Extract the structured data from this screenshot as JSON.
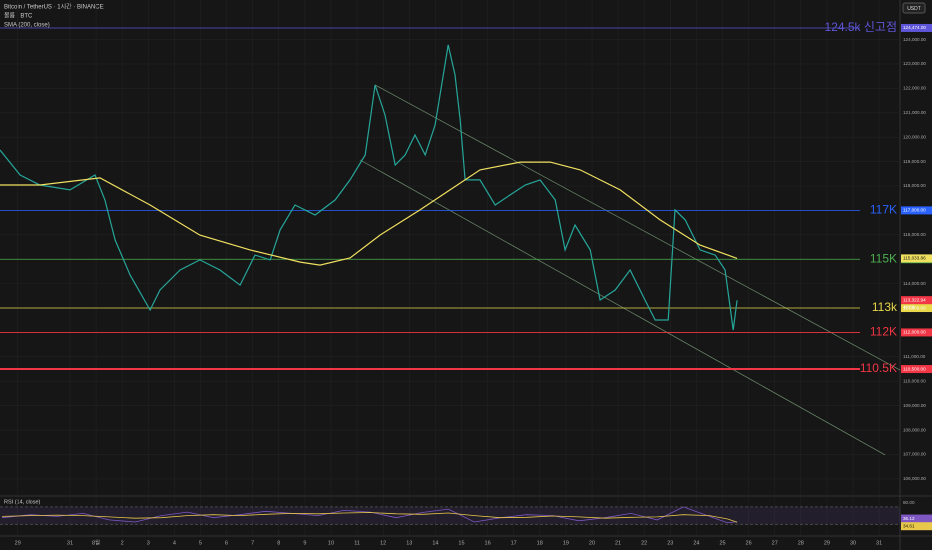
{
  "chart_data": [
    {
      "type": "line",
      "legend": [
        "Bitcoin / TetherUS · 1시간 · BINANCE",
        "볼륨 · BTC",
        "SMA (200, close)"
      ],
      "currency": "USDT",
      "countdown": "40:56",
      "xlim": [
        -3.68,
        30.8
      ],
      "xticks": [
        {
          "value": -3,
          "label": "29"
        },
        {
          "value": -1,
          "label": "31"
        },
        {
          "value": 0,
          "label": "8월"
        },
        {
          "value": 1,
          "label": "2"
        },
        {
          "value": 2,
          "label": "3"
        },
        {
          "value": 3,
          "label": "4"
        },
        {
          "value": 4,
          "label": "5"
        },
        {
          "value": 5,
          "label": "6"
        },
        {
          "value": 6,
          "label": "7"
        },
        {
          "value": 7,
          "label": "8"
        },
        {
          "value": 8,
          "label": "9"
        },
        {
          "value": 9,
          "label": "10"
        },
        {
          "value": 10,
          "label": "11"
        },
        {
          "value": 11,
          "label": "12"
        },
        {
          "value": 12,
          "label": "13"
        },
        {
          "value": 13,
          "label": "14"
        },
        {
          "value": 14,
          "label": "15"
        },
        {
          "value": 15,
          "label": "16"
        },
        {
          "value": 16,
          "label": "17"
        },
        {
          "value": 17,
          "label": "18"
        },
        {
          "value": 18,
          "label": "19"
        },
        {
          "value": 19,
          "label": "20"
        },
        {
          "value": 20,
          "label": "21"
        },
        {
          "value": 21,
          "label": "22"
        },
        {
          "value": 22,
          "label": "23"
        },
        {
          "value": 23,
          "label": "24"
        },
        {
          "value": 24,
          "label": "25"
        },
        {
          "value": 25,
          "label": "26"
        },
        {
          "value": 26,
          "label": "27"
        },
        {
          "value": 27,
          "label": "28"
        },
        {
          "value": 28,
          "label": "29"
        },
        {
          "value": 29,
          "label": "30"
        },
        {
          "value": 30,
          "label": "31"
        }
      ],
      "ylim": [
        105340,
        125620
      ],
      "yticks": [
        {
          "value": 106000,
          "label": "106,000.00"
        },
        {
          "value": 107000,
          "label": "107,000.00"
        },
        {
          "value": 108000,
          "label": "108,000.00"
        },
        {
          "value": 109000,
          "label": "109,000.00"
        },
        {
          "value": 110000,
          "label": "110,000.00"
        },
        {
          "value": 111000,
          "label": "111,000.00"
        },
        {
          "value": 114000,
          "label": "114,000.00"
        },
        {
          "value": 116000,
          "label": "116,000.00"
        },
        {
          "value": 118000,
          "label": "118,000.00"
        },
        {
          "value": 119000,
          "label": "119,000.00"
        },
        {
          "value": 120000,
          "label": "120,000.00"
        },
        {
          "value": 121000,
          "label": "121,000.00"
        },
        {
          "value": 122000,
          "label": "122,000.00"
        },
        {
          "value": 123000,
          "label": "123,000.00"
        },
        {
          "value": 124000,
          "label": "124,000.00"
        }
      ],
      "grid": true,
      "series": [
        {
          "name": "Bitcoin / TetherUS · 1시간 · BINANCE",
          "color": "#26a69a",
          "last_label": "113,322.94",
          "last_color": "#f23645",
          "x": [
            -3.68,
            -2.91,
            -2.15,
            -1.0,
            -0.04,
            0.34,
            0.73,
            1.3,
            2.07,
            2.45,
            3.22,
            3.98,
            4.75,
            5.52,
            6.09,
            6.67,
            7.05,
            7.62,
            8.39,
            9.16,
            9.73,
            10.31,
            10.69,
            11.07,
            11.46,
            11.84,
            12.22,
            12.61,
            12.99,
            13.49,
            13.75,
            13.95,
            14.14,
            14.71,
            15.29,
            15.86,
            16.44,
            17.01,
            17.59,
            17.97,
            18.35,
            18.93,
            19.31,
            19.89,
            20.46,
            21.03,
            21.42,
            21.92,
            22.18,
            22.57,
            23.14,
            23.72,
            24.1,
            24.41,
            24.56
          ],
          "values": [
            119475,
            118450,
            118040,
            117840,
            118450,
            117430,
            115790,
            114360,
            112920,
            113740,
            114560,
            114970,
            114560,
            113940,
            115170,
            114970,
            116200,
            117220,
            116810,
            117430,
            118250,
            119270,
            122140,
            120910,
            118860,
            119270,
            120090,
            119270,
            120500,
            123780,
            122550,
            120700,
            118250,
            118250,
            117220,
            117630,
            118040,
            118250,
            117430,
            115380,
            116400,
            115380,
            113330,
            113740,
            114560,
            113330,
            112510,
            112510,
            117020,
            116610,
            115380,
            115170,
            114560,
            112100,
            113322.94
          ]
        },
        {
          "name": "SMA (200, close)",
          "color": "#f0e060",
          "last_label": "115,033.86",
          "last_color": "#f0e060",
          "x": [
            -3.68,
            -2.15,
            0.15,
            2.07,
            3.98,
            5.9,
            7.82,
            8.58,
            9.73,
            10.88,
            12.41,
            13.56,
            14.71,
            16.25,
            17.4,
            18.55,
            20.08,
            21.61,
            23.14,
            24.56
          ],
          "values": [
            118040,
            118040,
            118330,
            117220,
            115990,
            115380,
            114880,
            114760,
            115050,
            115990,
            117020,
            117840,
            118660,
            118980,
            118980,
            118660,
            117840,
            116610,
            115580,
            115033.86
          ]
        }
      ],
      "levels": [
        {
          "value": 124474,
          "label": "124.5k 신고점",
          "axis_label": "124,474.00",
          "color": "#5e55d8"
        },
        {
          "value": 117000,
          "label": "117K",
          "axis_label": "117,000.00",
          "color": "#2962ff"
        },
        {
          "value": 115000,
          "label": "115K",
          "axis_label": "115,000.00",
          "color": "#4caf50"
        },
        {
          "value": 113000,
          "label": "113k",
          "axis_label": "113,000.00",
          "color": "#e8d84a"
        },
        {
          "value": 112000,
          "label": "112K",
          "axis_label": "112,000.00",
          "color": "#f23645"
        },
        {
          "value": 110500,
          "label": "110.5K",
          "axis_label": "110,500.00",
          "color": "#f23645"
        }
      ],
      "trendlines": [
        {
          "points": [
            {
              "x": 10.69,
              "y": 122140
            },
            {
              "x": 30.8,
              "y": 110460
            }
          ]
        },
        {
          "points": [
            {
              "x": 10.11,
              "y": 119070
            },
            {
              "x": 30.23,
              "y": 106980
            }
          ]
        }
      ]
    },
    {
      "type": "line",
      "title": "RSI (14, close)",
      "ylim": [
        5,
        93
      ],
      "yticks": [
        {
          "value": 80,
          "label": "80.00"
        }
      ],
      "band": [
        30,
        70
      ],
      "series": [
        {
          "name": "RSI",
          "color": "#7e57c2",
          "last_label": "36.12",
          "x": [
            -3.6,
            -2.5,
            -1.5,
            -0.5,
            0.5,
            1.5,
            2.5,
            3.5,
            4.5,
            5.5,
            6.5,
            7.5,
            8.5,
            9.5,
            10.5,
            11.5,
            12.5,
            13.5,
            14.5,
            15.5,
            16.5,
            17.5,
            18.5,
            19.5,
            20.5,
            21.5,
            22.5,
            23.5,
            24.2,
            24.56
          ],
          "values": [
            45,
            52,
            48,
            55,
            40,
            35,
            50,
            58,
            45,
            52,
            60,
            55,
            50,
            62,
            58,
            45,
            57,
            65,
            35,
            45,
            52,
            50,
            38,
            45,
            55,
            40,
            70,
            48,
            33,
            36.12
          ]
        },
        {
          "name": "RSI MA",
          "color": "#e8c84a",
          "last_label": "34.61",
          "x": [
            -3.6,
            -2.5,
            -1.5,
            -0.5,
            0.5,
            1.5,
            2.5,
            3.5,
            4.5,
            5.5,
            6.5,
            7.5,
            8.5,
            9.5,
            10.5,
            11.5,
            12.5,
            13.5,
            14.5,
            15.5,
            16.5,
            17.5,
            18.5,
            19.5,
            20.5,
            21.5,
            22.5,
            23.5,
            24.2,
            24.56
          ],
          "values": [
            48,
            50,
            51,
            50,
            47,
            44,
            45,
            50,
            52,
            50,
            53,
            55,
            54,
            56,
            57,
            54,
            53,
            56,
            50,
            45,
            46,
            49,
            47,
            44,
            46,
            47,
            52,
            50,
            42,
            34.61
          ]
        }
      ]
    }
  ]
}
